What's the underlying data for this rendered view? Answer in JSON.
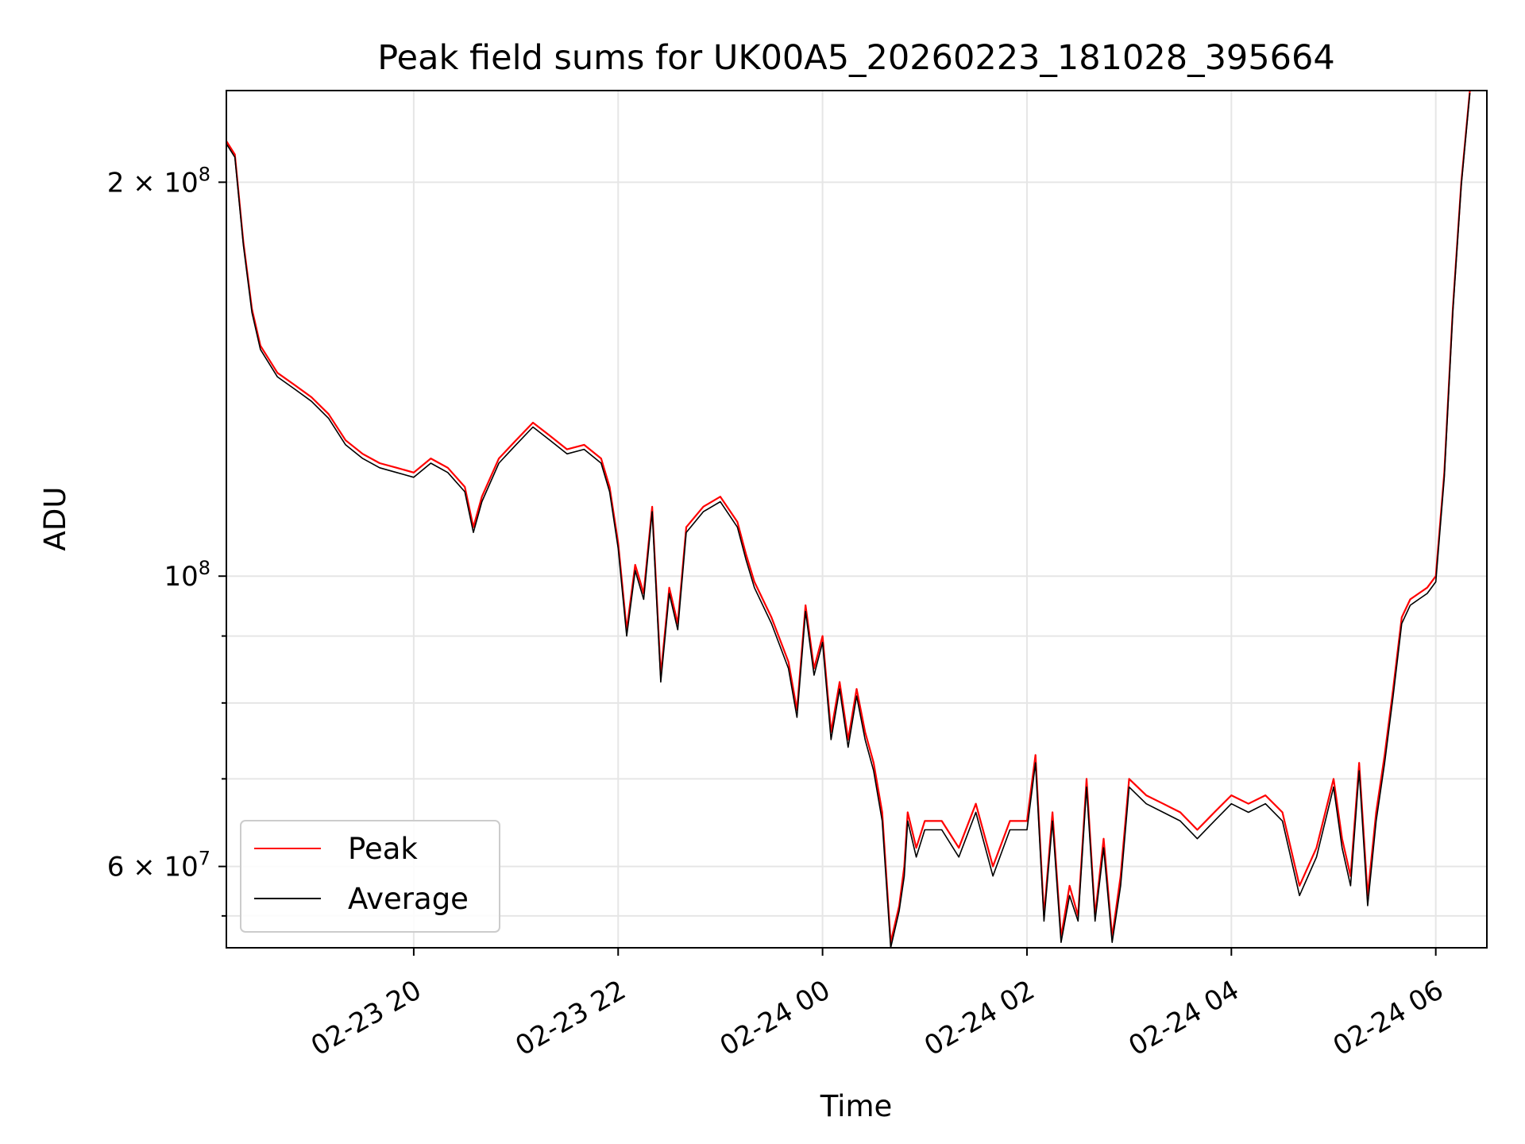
{
  "chart_data": {
    "type": "line",
    "title": "Peak field sums for UK00A5_20260223_181028_395664",
    "xlabel": "Time",
    "ylabel": "ADU",
    "yscale": "log",
    "xlim": [
      "2026-02-23 18:10",
      "2026-02-24 06:30"
    ],
    "ylim": [
      52000000,
      235000000
    ],
    "x_ticks": [
      {
        "value": "2026-02-23 20:00",
        "label": "02-23 20"
      },
      {
        "value": "2026-02-23 22:00",
        "label": "02-23 22"
      },
      {
        "value": "2026-02-24 00:00",
        "label": "02-24 00"
      },
      {
        "value": "2026-02-24 02:00",
        "label": "02-24 02"
      },
      {
        "value": "2026-02-24 04:00",
        "label": "02-24 04"
      },
      {
        "value": "2026-02-24 06:00",
        "label": "02-24 06"
      }
    ],
    "y_major_ticks": [
      {
        "value": 60000000,
        "label": "6 × 10",
        "exponent": "7"
      },
      {
        "value": 100000000,
        "label": "10",
        "exponent": "8"
      },
      {
        "value": 200000000,
        "label": "2 × 10",
        "exponent": "8"
      }
    ],
    "y_minor_ticks": [
      55000000,
      70000000,
      80000000,
      90000000
    ],
    "grid": true,
    "legend_position": "lower-left",
    "series": [
      {
        "name": "Peak",
        "color": "#ff0000",
        "x": [
          "2026-02-23 18:10",
          "2026-02-23 18:15",
          "2026-02-23 18:20",
          "2026-02-23 18:25",
          "2026-02-23 18:30",
          "2026-02-23 18:40",
          "2026-02-23 18:50",
          "2026-02-23 19:00",
          "2026-02-23 19:10",
          "2026-02-23 19:20",
          "2026-02-23 19:30",
          "2026-02-23 19:40",
          "2026-02-23 19:50",
          "2026-02-23 20:00",
          "2026-02-23 20:10",
          "2026-02-23 20:20",
          "2026-02-23 20:30",
          "2026-02-23 20:35",
          "2026-02-23 20:40",
          "2026-02-23 20:50",
          "2026-02-23 21:00",
          "2026-02-23 21:10",
          "2026-02-23 21:20",
          "2026-02-23 21:30",
          "2026-02-23 21:40",
          "2026-02-23 21:50",
          "2026-02-23 21:55",
          "2026-02-23 22:00",
          "2026-02-23 22:05",
          "2026-02-23 22:10",
          "2026-02-23 22:15",
          "2026-02-23 22:20",
          "2026-02-23 22:25",
          "2026-02-23 22:30",
          "2026-02-23 22:35",
          "2026-02-23 22:40",
          "2026-02-23 22:50",
          "2026-02-23 23:00",
          "2026-02-23 23:10",
          "2026-02-23 23:15",
          "2026-02-23 23:20",
          "2026-02-23 23:30",
          "2026-02-23 23:40",
          "2026-02-23 23:45",
          "2026-02-23 23:50",
          "2026-02-23 23:55",
          "2026-02-24 00:00",
          "2026-02-24 00:05",
          "2026-02-24 00:10",
          "2026-02-24 00:15",
          "2026-02-24 00:20",
          "2026-02-24 00:25",
          "2026-02-24 00:30",
          "2026-02-24 00:35",
          "2026-02-24 00:40",
          "2026-02-24 00:45",
          "2026-02-24 00:48",
          "2026-02-24 00:50",
          "2026-02-24 00:55",
          "2026-02-24 01:00",
          "2026-02-24 01:10",
          "2026-02-24 01:20",
          "2026-02-24 01:30",
          "2026-02-24 01:40",
          "2026-02-24 01:50",
          "2026-02-24 02:00",
          "2026-02-24 02:05",
          "2026-02-24 02:10",
          "2026-02-24 02:15",
          "2026-02-24 02:20",
          "2026-02-24 02:25",
          "2026-02-24 02:30",
          "2026-02-24 02:35",
          "2026-02-24 02:40",
          "2026-02-24 02:45",
          "2026-02-24 02:50",
          "2026-02-24 02:55",
          "2026-02-24 03:00",
          "2026-02-24 03:10",
          "2026-02-24 03:20",
          "2026-02-24 03:30",
          "2026-02-24 03:40",
          "2026-02-24 03:50",
          "2026-02-24 04:00",
          "2026-02-24 04:10",
          "2026-02-24 04:20",
          "2026-02-24 04:30",
          "2026-02-24 04:40",
          "2026-02-24 04:50",
          "2026-02-24 05:00",
          "2026-02-24 05:05",
          "2026-02-24 05:10",
          "2026-02-24 05:15",
          "2026-02-24 05:20",
          "2026-02-24 05:25",
          "2026-02-24 05:30",
          "2026-02-24 05:35",
          "2026-02-24 05:40",
          "2026-02-24 05:45",
          "2026-02-24 05:50",
          "2026-02-24 05:55",
          "2026-02-24 06:00",
          "2026-02-24 06:05",
          "2026-02-24 06:10",
          "2026-02-24 06:15",
          "2026-02-24 06:20"
        ],
        "values": [
          215000000,
          210000000,
          180000000,
          160000000,
          150000000,
          143000000,
          140000000,
          137000000,
          133000000,
          127000000,
          124000000,
          122000000,
          121000000,
          120000000,
          123000000,
          121000000,
          117000000,
          109000000,
          115000000,
          123000000,
          127000000,
          131000000,
          128000000,
          125000000,
          126000000,
          123000000,
          117000000,
          106000000,
          91000000,
          102000000,
          97000000,
          113000000,
          84000000,
          98000000,
          92000000,
          109000000,
          113000000,
          115000000,
          110000000,
          104000000,
          99000000,
          93000000,
          86000000,
          79000000,
          95000000,
          85000000,
          90000000,
          76000000,
          83000000,
          75000000,
          82000000,
          76000000,
          72000000,
          66000000,
          52500000,
          56000000,
          60000000,
          66000000,
          62000000,
          65000000,
          65000000,
          62000000,
          67000000,
          60000000,
          65000000,
          65000000,
          73000000,
          55000000,
          66000000,
          53000000,
          58000000,
          55000000,
          70000000,
          55000000,
          63000000,
          53000000,
          59000000,
          70000000,
          68000000,
          67000000,
          66000000,
          64000000,
          66000000,
          68000000,
          67000000,
          68000000,
          66000000,
          58000000,
          62000000,
          70000000,
          63000000,
          59000000,
          72000000,
          57000000,
          66000000,
          73000000,
          82000000,
          93000000,
          96000000,
          97000000,
          98000000,
          100000000,
          120000000,
          160000000,
          200000000,
          235000000
        ]
      },
      {
        "name": "Average",
        "color": "#000000",
        "x": [
          "2026-02-23 18:10",
          "2026-02-23 18:15",
          "2026-02-23 18:20",
          "2026-02-23 18:25",
          "2026-02-23 18:30",
          "2026-02-23 18:40",
          "2026-02-23 18:50",
          "2026-02-23 19:00",
          "2026-02-23 19:10",
          "2026-02-23 19:20",
          "2026-02-23 19:30",
          "2026-02-23 19:40",
          "2026-02-23 19:50",
          "2026-02-23 20:00",
          "2026-02-23 20:10",
          "2026-02-23 20:20",
          "2026-02-23 20:30",
          "2026-02-23 20:35",
          "2026-02-23 20:40",
          "2026-02-23 20:50",
          "2026-02-23 21:00",
          "2026-02-23 21:10",
          "2026-02-23 21:20",
          "2026-02-23 21:30",
          "2026-02-23 21:40",
          "2026-02-23 21:50",
          "2026-02-23 21:55",
          "2026-02-23 22:00",
          "2026-02-23 22:05",
          "2026-02-23 22:10",
          "2026-02-23 22:15",
          "2026-02-23 22:20",
          "2026-02-23 22:25",
          "2026-02-23 22:30",
          "2026-02-23 22:35",
          "2026-02-23 22:40",
          "2026-02-23 22:50",
          "2026-02-23 23:00",
          "2026-02-23 23:10",
          "2026-02-23 23:15",
          "2026-02-23 23:20",
          "2026-02-23 23:30",
          "2026-02-23 23:40",
          "2026-02-23 23:45",
          "2026-02-23 23:50",
          "2026-02-23 23:55",
          "2026-02-24 00:00",
          "2026-02-24 00:05",
          "2026-02-24 00:10",
          "2026-02-24 00:15",
          "2026-02-24 00:20",
          "2026-02-24 00:25",
          "2026-02-24 00:30",
          "2026-02-24 00:35",
          "2026-02-24 00:40",
          "2026-02-24 00:45",
          "2026-02-24 00:48",
          "2026-02-24 00:50",
          "2026-02-24 00:55",
          "2026-02-24 01:00",
          "2026-02-24 01:10",
          "2026-02-24 01:20",
          "2026-02-24 01:30",
          "2026-02-24 01:40",
          "2026-02-24 01:50",
          "2026-02-24 02:00",
          "2026-02-24 02:05",
          "2026-02-24 02:10",
          "2026-02-24 02:15",
          "2026-02-24 02:20",
          "2026-02-24 02:25",
          "2026-02-24 02:30",
          "2026-02-24 02:35",
          "2026-02-24 02:40",
          "2026-02-24 02:45",
          "2026-02-24 02:50",
          "2026-02-24 02:55",
          "2026-02-24 03:00",
          "2026-02-24 03:10",
          "2026-02-24 03:20",
          "2026-02-24 03:30",
          "2026-02-24 03:40",
          "2026-02-24 03:50",
          "2026-02-24 04:00",
          "2026-02-24 04:10",
          "2026-02-24 04:20",
          "2026-02-24 04:30",
          "2026-02-24 04:40",
          "2026-02-24 04:50",
          "2026-02-24 05:00",
          "2026-02-24 05:05",
          "2026-02-24 05:10",
          "2026-02-24 05:15",
          "2026-02-24 05:20",
          "2026-02-24 05:25",
          "2026-02-24 05:30",
          "2026-02-24 05:35",
          "2026-02-24 05:40",
          "2026-02-24 05:45",
          "2026-02-24 05:50",
          "2026-02-24 05:55",
          "2026-02-24 06:00",
          "2026-02-24 06:05",
          "2026-02-24 06:10",
          "2026-02-24 06:15",
          "2026-02-24 06:20"
        ],
        "values": [
          214000000,
          209000000,
          179000000,
          159000000,
          149000000,
          142000000,
          139000000,
          136000000,
          132000000,
          126000000,
          123000000,
          121000000,
          120000000,
          119000000,
          122000000,
          120000000,
          116000000,
          108000000,
          114000000,
          122000000,
          126000000,
          130000000,
          127000000,
          124000000,
          125000000,
          122000000,
          116000000,
          105000000,
          90000000,
          101000000,
          96000000,
          112000000,
          83000000,
          97000000,
          91000000,
          108000000,
          112000000,
          114000000,
          109000000,
          103000000,
          98000000,
          92000000,
          85000000,
          78000000,
          94000000,
          84000000,
          89000000,
          75000000,
          82000000,
          74000000,
          81000000,
          75000000,
          71000000,
          65000000,
          52000000,
          55500000,
          59000000,
          65000000,
          61000000,
          64000000,
          64000000,
          61000000,
          66000000,
          59000000,
          64000000,
          64000000,
          72000000,
          54500000,
          65000000,
          52500000,
          57000000,
          54500000,
          69000000,
          54500000,
          62000000,
          52500000,
          58000000,
          69000000,
          67000000,
          66000000,
          65000000,
          63000000,
          65000000,
          67000000,
          66000000,
          67000000,
          65000000,
          57000000,
          61000000,
          69000000,
          62000000,
          58000000,
          71000000,
          56000000,
          65000000,
          72000000,
          81000000,
          92000000,
          95000000,
          96000000,
          97000000,
          99000000,
          119000000,
          159000000,
          199000000,
          234000000
        ]
      }
    ]
  }
}
